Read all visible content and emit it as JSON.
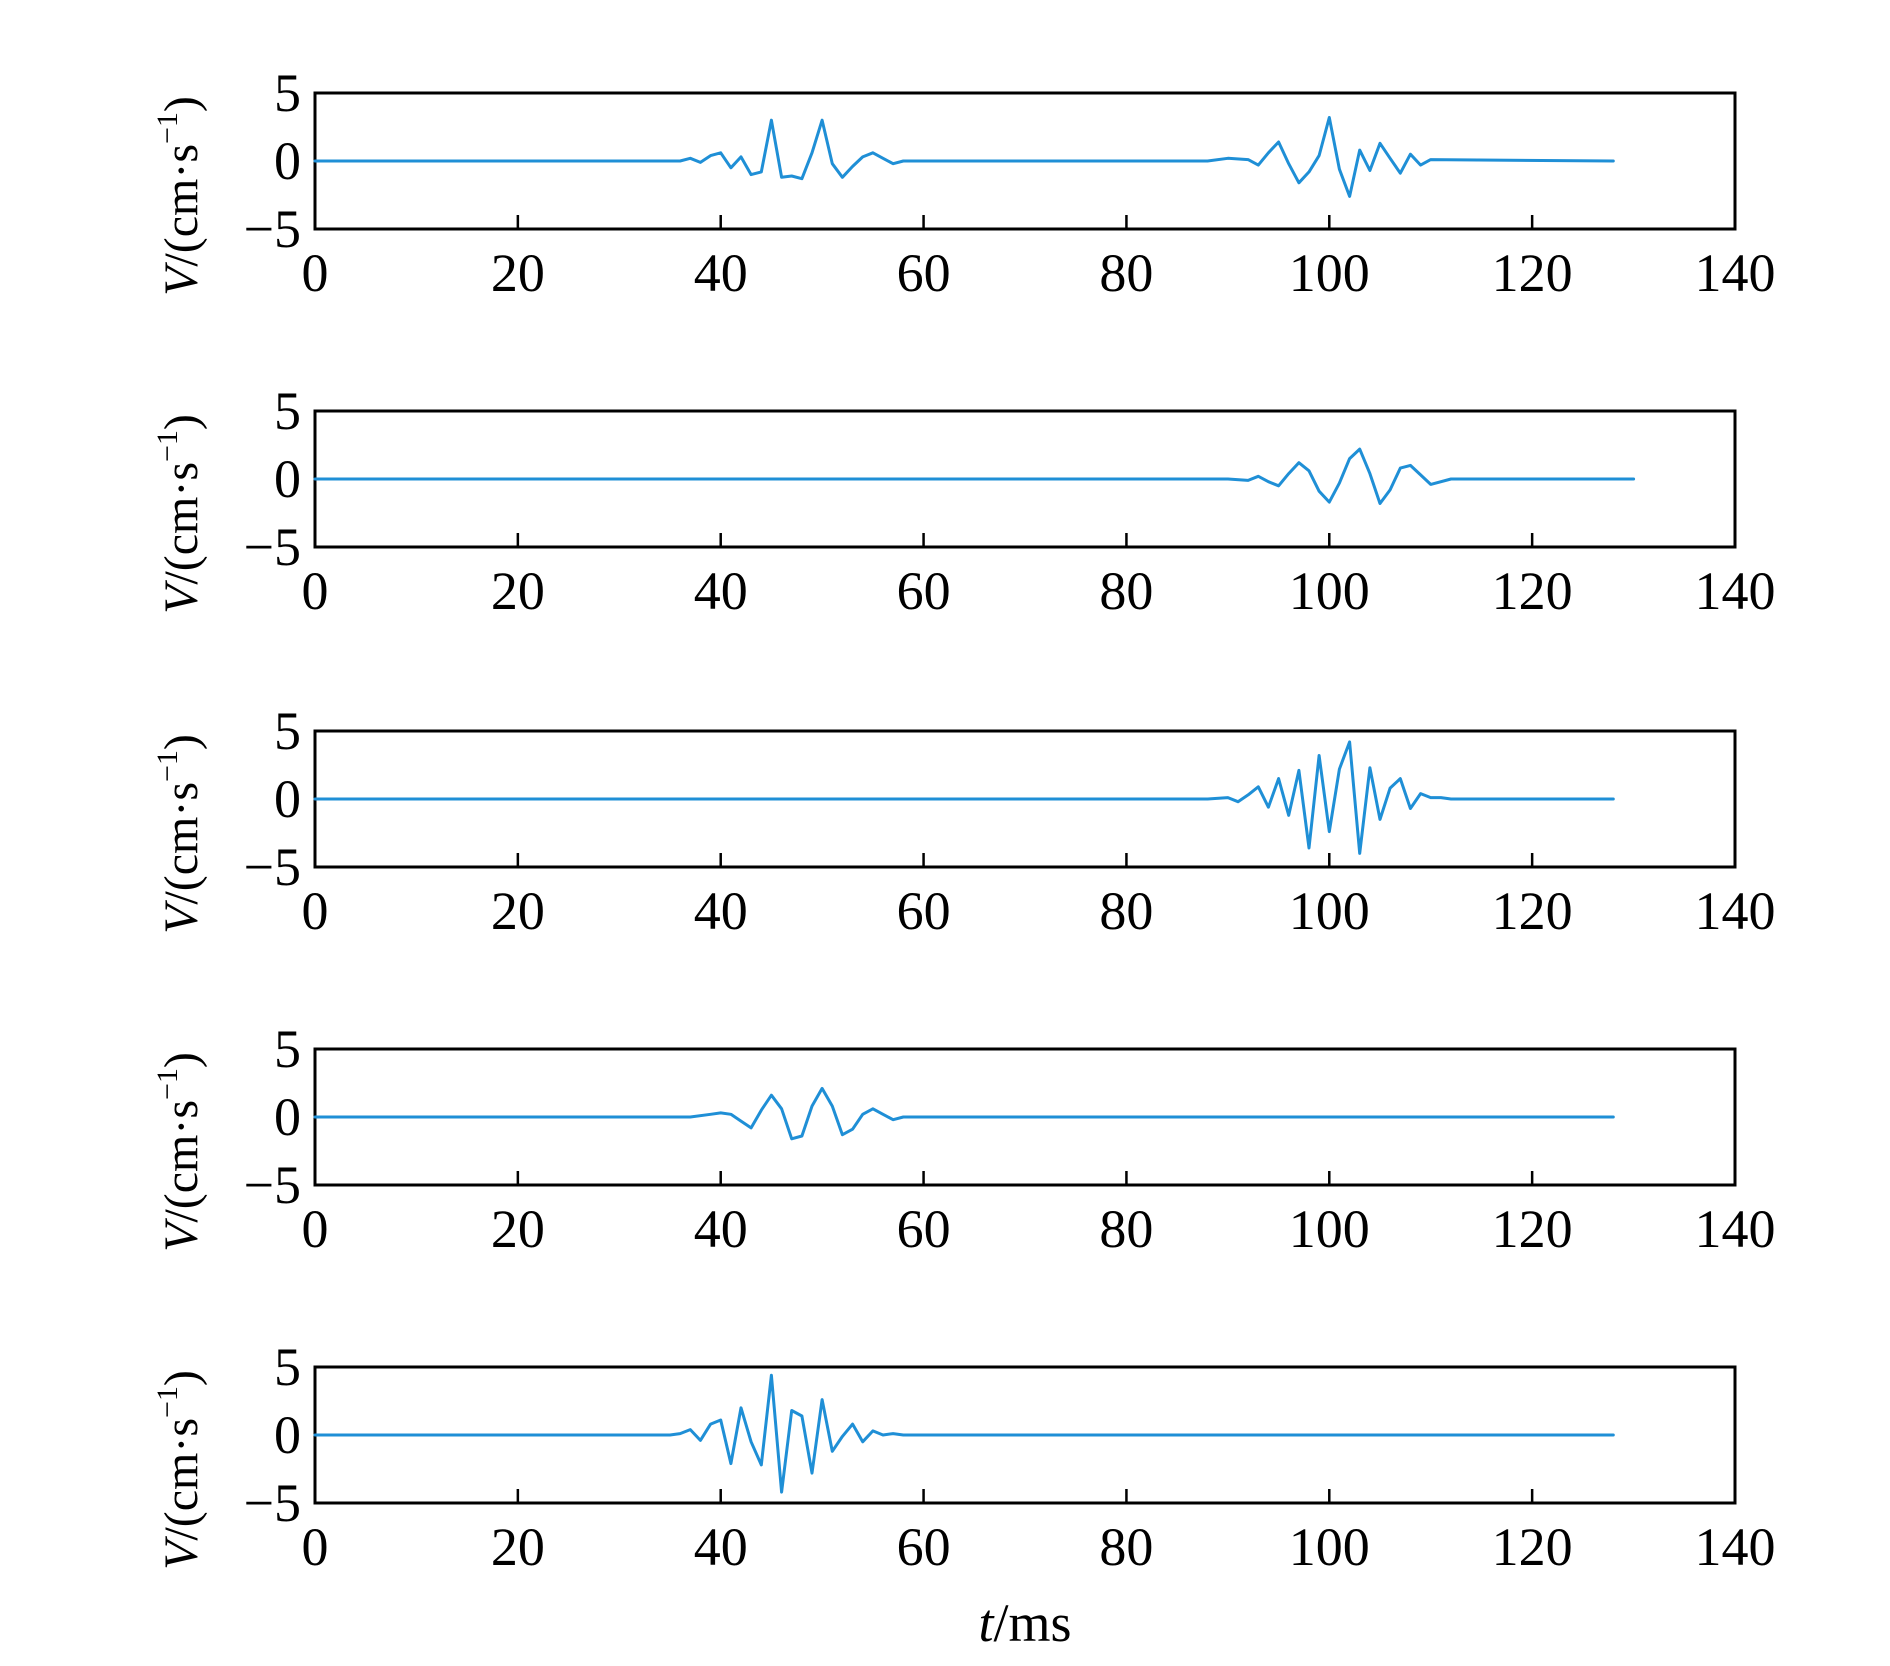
{
  "chart_data": [
    {
      "type": "line",
      "xlim": [
        0,
        140
      ],
      "ylim": [
        -5,
        5
      ],
      "xticks": [
        0,
        20,
        40,
        60,
        80,
        100,
        120,
        140
      ],
      "yticks": [
        5,
        0,
        -5
      ],
      "x_tick_labels": [
        "0",
        "20",
        "40",
        "60",
        "80",
        "100",
        "120",
        "140"
      ],
      "y_tick_labels": [
        "5",
        "0",
        "−5"
      ],
      "ylabel": "V/(cm·s⁻¹)",
      "ylabel_var": "V",
      "ylabel_unit": "/(cm·s",
      "ylabel_exp": "−1",
      "ylabel_close": ")",
      "xlabel": "",
      "color": "#1f8fd6",
      "series": [
        {
          "x": [
            0,
            34,
            36,
            37,
            38,
            39,
            40,
            41,
            42,
            43,
            44,
            45,
            46,
            47,
            48,
            49,
            50,
            51,
            52,
            53,
            54,
            55,
            56,
            57,
            58,
            60,
            70,
            80,
            88,
            90,
            92,
            93,
            94,
            95,
            96,
            97,
            98,
            99,
            100,
            101,
            102,
            103,
            104,
            105,
            106,
            107,
            108,
            109,
            110,
            128
          ],
          "y": [
            0,
            0,
            0,
            0.2,
            -0.1,
            0.4,
            0.6,
            -0.5,
            0.3,
            -1.0,
            -0.8,
            3.0,
            -1.2,
            -1.1,
            -1.3,
            0.6,
            3.0,
            -0.2,
            -1.2,
            -0.4,
            0.3,
            0.6,
            0.2,
            -0.2,
            0,
            0,
            0,
            0,
            0,
            0.2,
            0.1,
            -0.3,
            0.6,
            1.4,
            -0.2,
            -1.6,
            -0.8,
            0.4,
            3.2,
            -0.6,
            -2.6,
            0.8,
            -0.7,
            1.3,
            0.2,
            -0.9,
            0.5,
            -0.3,
            0.1,
            0
          ]
        }
      ]
    },
    {
      "type": "line",
      "xlim": [
        0,
        140
      ],
      "ylim": [
        -5,
        5
      ],
      "xticks": [
        0,
        20,
        40,
        60,
        80,
        100,
        120,
        140
      ],
      "yticks": [
        5,
        0,
        -5
      ],
      "x_tick_labels": [
        "0",
        "20",
        "40",
        "60",
        "80",
        "100",
        "120",
        "140"
      ],
      "y_tick_labels": [
        "5",
        "0",
        "−5"
      ],
      "ylabel": "V/(cm·s⁻¹)",
      "ylabel_var": "V",
      "ylabel_unit": "/(cm·s",
      "ylabel_exp": "−1",
      "ylabel_close": ")",
      "xlabel": "",
      "color": "#1f8fd6",
      "series": [
        {
          "x": [
            0,
            90,
            92,
            93,
            94,
            95,
            96,
            97,
            98,
            99,
            100,
            101,
            102,
            103,
            104,
            105,
            106,
            107,
            108,
            109,
            110,
            112,
            130
          ],
          "y": [
            0,
            0,
            -0.1,
            0.2,
            -0.2,
            -0.5,
            0.4,
            1.2,
            0.6,
            -0.9,
            -1.7,
            -0.3,
            1.5,
            2.2,
            0.4,
            -1.8,
            -0.8,
            0.8,
            1.0,
            0.3,
            -0.4,
            0,
            0
          ]
        }
      ]
    },
    {
      "type": "line",
      "xlim": [
        0,
        140
      ],
      "ylim": [
        -5,
        5
      ],
      "xticks": [
        0,
        20,
        40,
        60,
        80,
        100,
        120,
        140
      ],
      "yticks": [
        5,
        0,
        -5
      ],
      "x_tick_labels": [
        "0",
        "20",
        "40",
        "60",
        "80",
        "100",
        "120",
        "140"
      ],
      "y_tick_labels": [
        "5",
        "0",
        "−5"
      ],
      "ylabel": "V/(cm·s⁻¹)",
      "ylabel_var": "V",
      "ylabel_unit": "/(cm·s",
      "ylabel_exp": "−1",
      "ylabel_close": ")",
      "xlabel": "",
      "color": "#1f8fd6",
      "series": [
        {
          "x": [
            0,
            88,
            90,
            91,
            92,
            93,
            94,
            95,
            96,
            97,
            98,
            99,
            100,
            101,
            102,
            103,
            104,
            105,
            106,
            107,
            108,
            109,
            110,
            111,
            112,
            128
          ],
          "y": [
            0,
            0,
            0.1,
            -0.2,
            0.3,
            0.9,
            -0.6,
            1.5,
            -1.2,
            2.1,
            -3.6,
            3.2,
            -2.4,
            2.2,
            4.2,
            -4.0,
            2.3,
            -1.5,
            0.8,
            1.5,
            -0.7,
            0.4,
            0.1,
            0.1,
            0,
            0
          ]
        }
      ]
    },
    {
      "type": "line",
      "xlim": [
        0,
        140
      ],
      "ylim": [
        -5,
        5
      ],
      "xticks": [
        0,
        20,
        40,
        60,
        80,
        100,
        120,
        140
      ],
      "yticks": [
        5,
        0,
        -5
      ],
      "x_tick_labels": [
        "0",
        "20",
        "40",
        "60",
        "80",
        "100",
        "120",
        "140"
      ],
      "y_tick_labels": [
        "5",
        "0",
        "−5"
      ],
      "ylabel": "V/(cm·s⁻¹)",
      "ylabel_var": "V",
      "ylabel_unit": "/(cm·s",
      "ylabel_exp": "−1",
      "ylabel_close": ")",
      "xlabel": "",
      "color": "#1f8fd6",
      "series": [
        {
          "x": [
            0,
            37,
            39,
            40,
            41,
            42,
            43,
            44,
            45,
            46,
            47,
            48,
            49,
            50,
            51,
            52,
            53,
            54,
            55,
            56,
            57,
            58,
            60,
            128
          ],
          "y": [
            0,
            0,
            0.2,
            0.3,
            0.2,
            -0.3,
            -0.8,
            0.5,
            1.6,
            0.6,
            -1.6,
            -1.4,
            0.8,
            2.1,
            0.8,
            -1.3,
            -0.9,
            0.2,
            0.6,
            0.2,
            -0.2,
            0,
            0,
            0
          ]
        }
      ]
    },
    {
      "type": "line",
      "xlim": [
        0,
        140
      ],
      "ylim": [
        -5,
        5
      ],
      "xticks": [
        0,
        20,
        40,
        60,
        80,
        100,
        120,
        140
      ],
      "yticks": [
        5,
        0,
        -5
      ],
      "x_tick_labels": [
        "0",
        "20",
        "40",
        "60",
        "80",
        "100",
        "120",
        "140"
      ],
      "y_tick_labels": [
        "5",
        "0",
        "−5"
      ],
      "ylabel": "V/(cm·s⁻¹)",
      "ylabel_var": "V",
      "ylabel_unit": "/(cm·s",
      "ylabel_exp": "−1",
      "ylabel_close": ")",
      "xlabel": "t/ms",
      "xlabel_var": "t",
      "xlabel_unit": "/ms",
      "color": "#1f8fd6",
      "series": [
        {
          "x": [
            0,
            35,
            36,
            37,
            38,
            39,
            40,
            41,
            42,
            43,
            44,
            45,
            46,
            47,
            48,
            49,
            50,
            51,
            52,
            53,
            54,
            55,
            56,
            57,
            58,
            128
          ],
          "y": [
            0,
            0,
            0.1,
            0.4,
            -0.4,
            0.8,
            1.1,
            -2.1,
            2.0,
            -0.5,
            -2.2,
            4.4,
            -4.2,
            1.8,
            1.4,
            -2.8,
            2.6,
            -1.2,
            -0.1,
            0.8,
            -0.5,
            0.3,
            0.0,
            0.1,
            0,
            0
          ]
        }
      ]
    }
  ]
}
